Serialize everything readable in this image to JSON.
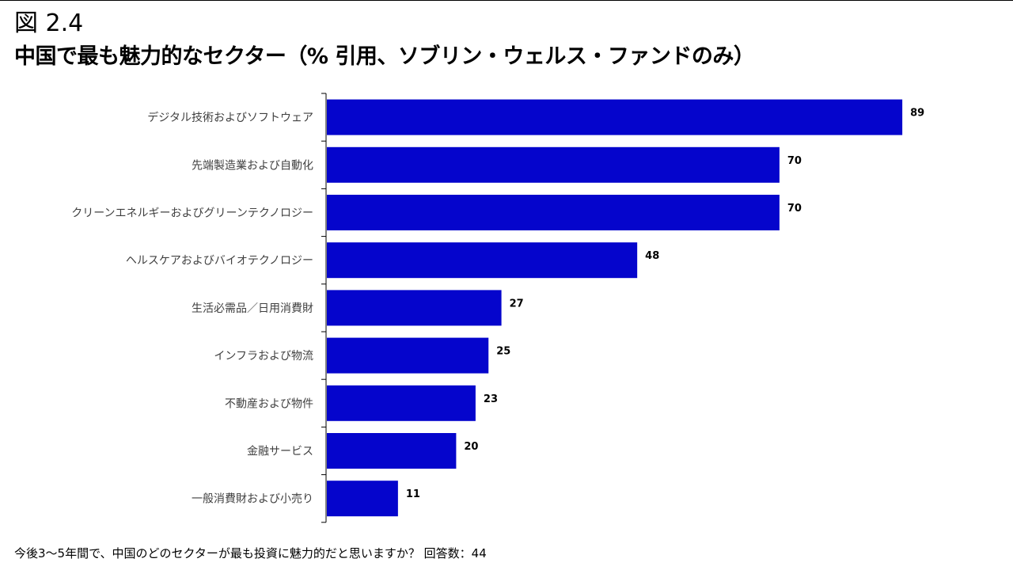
{
  "figure_label": "図 2.4",
  "chart_data": {
    "type": "bar",
    "orientation": "horizontal",
    "title": "中国で最も魅力的なセクター（% 引用、ソブリン・ウェルス・ファンドのみ）",
    "categories": [
      "デジタル技術およびソフトウェア",
      "先端製造業および自動化",
      "クリーンエネルギーおよびグリーンテクノロジー",
      "ヘルスケアおよびバイオテクノロジー",
      "生活必需品／日用消費財",
      "インフラおよび物流",
      "不動産および物件",
      "金融サービス",
      "一般消費財および小売り"
    ],
    "values": [
      89,
      70,
      70,
      48,
      27,
      25,
      23,
      20,
      11
    ],
    "xlim": [
      0,
      100
    ],
    "grid": false,
    "legend": "none",
    "bar_color": "#0505CC"
  },
  "footnote": "今後3～5年間で、中国のどのセクターが最も投資に魅力的だと思いますか？ 回答数：44"
}
